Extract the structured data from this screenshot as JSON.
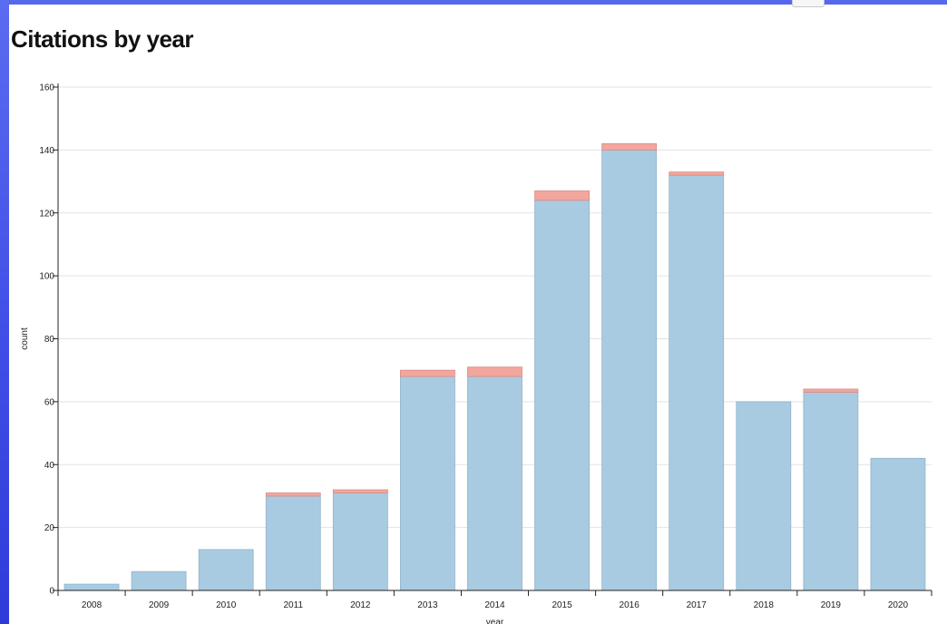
{
  "page": {
    "title": "Citations by year"
  },
  "colors": {
    "window_frame": "#4a5ae9",
    "bar_primary": "#a9cbe1",
    "bar_primary_stroke": "#8fb3cc",
    "bar_secondary": "#f3a69e",
    "bar_secondary_stroke": "#d98a82",
    "grid": "#e3e3e3",
    "axis": "#222222"
  },
  "chart_data": {
    "type": "bar",
    "stacked": true,
    "title": "Citations by year",
    "xlabel": "year",
    "ylabel": "count",
    "ylim": [
      0,
      160
    ],
    "yticks": [
      0,
      20,
      40,
      60,
      80,
      100,
      120,
      140,
      160
    ],
    "grid": true,
    "categories": [
      "2008",
      "2009",
      "2010",
      "2011",
      "2012",
      "2013",
      "2014",
      "2015",
      "2016",
      "2017",
      "2018",
      "2019",
      "2020"
    ],
    "series": [
      {
        "values": [
          2,
          6,
          13,
          30,
          31,
          68,
          68,
          124,
          140,
          132,
          60,
          63,
          42
        ],
        "color": "#a9cbe1"
      },
      {
        "values": [
          0,
          0,
          0,
          1,
          1,
          2,
          3,
          3,
          2,
          1,
          0,
          1,
          0
        ],
        "color": "#f3a69e"
      }
    ]
  }
}
